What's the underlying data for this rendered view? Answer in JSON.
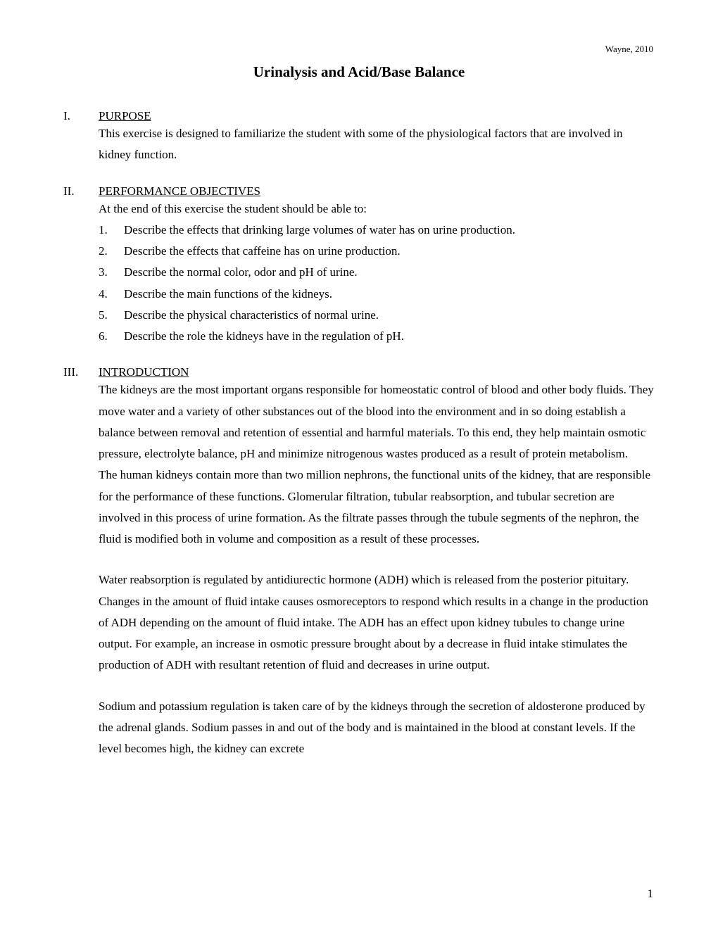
{
  "header": {
    "attribution": "Wayne, 2010"
  },
  "title": "Urinalysis and Acid/Base Balance",
  "sections": {
    "purpose": {
      "roman": "I.",
      "heading": "PURPOSE",
      "body": "This exercise is designed to familiarize the student with some of the physiological factors that are involved in kidney function."
    },
    "objectives": {
      "roman": "II.",
      "heading": "PERFORMANCE OBJECTIVES",
      "intro": "At the end of this exercise the student should be able to:",
      "items": [
        {
          "num": "1.",
          "text": "Describe the effects that drinking large volumes of water has on urine production."
        },
        {
          "num": "2.",
          "text": "Describe the effects that caffeine has on urine production."
        },
        {
          "num": "3.",
          "text": "Describe the normal color, odor and pH of urine."
        },
        {
          "num": "4.",
          "text": "Describe the main functions of the kidneys."
        },
        {
          "num": "5.",
          "text": "Describe the physical characteristics of normal urine."
        },
        {
          "num": "6.",
          "text": "Describe the role the kidneys have  in the regulation of pH."
        }
      ]
    },
    "introduction": {
      "roman": "III.",
      "heading": "INTRODUCTION",
      "para1": "The kidneys are the most important organs responsible for homeostatic control of blood and other body fluids.  They move water and a variety of other substances out of the blood into the environment and in so doing establish a balance between removal and retention of essential and harmful materials.  To this end, they help maintain osmotic pressure, electrolyte balance, pH and minimize nitrogenous wastes produced as a result of protein metabolism.",
      "para2": "The human kidneys contain more than two million nephrons, the functional units of the kidney, that are responsible for the performance of these functions.  Glomerular filtration, tubular reabsorption, and tubular secretion are involved in this process of urine formation.  As the filtrate passes through the tubule segments of the nephron, the fluid is modified both in volume and composition as a result of these processes.",
      "para3": "Water reabsorption is regulated by antidiurectic hormone (ADH) which is released from the posterior pituitary.  Changes in the amount of fluid intake causes osmoreceptors to respond which results in a change in the production of ADH depending on the amount of fluid intake.  The ADH has an effect upon kidney tubules to change urine output.  For example, an increase in osmotic pressure brought about by a decrease in fluid intake stimulates the production of ADH with resultant retention of fluid and decreases in urine output.",
      "para4": "Sodium and potassium regulation is taken care of by the kidneys through the secretion of aldosterone produced by the adrenal glands.  Sodium passes in and out of the body and is maintained in the blood at constant levels.  If the level becomes high, the kidney can excrete"
    }
  },
  "page_number": "1"
}
